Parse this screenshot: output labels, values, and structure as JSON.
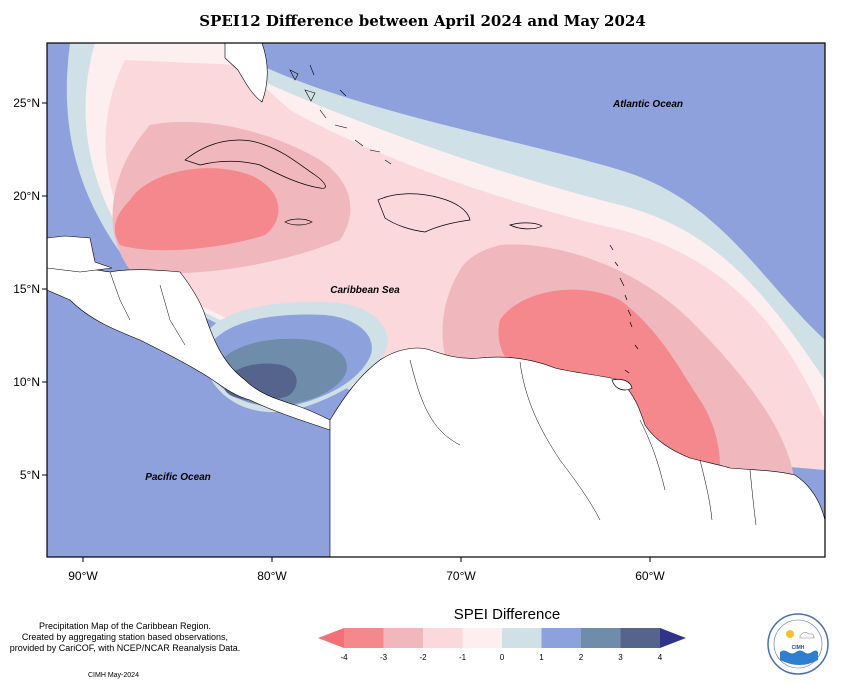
{
  "title": "SPEI12 Difference between April 2024 and May 2024",
  "axes": {
    "lon_ticks": [
      "90°W",
      "80°W",
      "70°W",
      "60°W"
    ],
    "lat_ticks": [
      "25°N",
      "20°N",
      "15°N",
      "10°N",
      "5°N"
    ]
  },
  "labels": {
    "atlantic": "Atlantic Ocean",
    "caribbean": "Caribbean Sea",
    "pacific": "Pacific Ocean"
  },
  "note": {
    "line1": "Precipitation Map of the Caribbean Region.",
    "line2": "Created by aggregating station based observations,",
    "line3": "provided by CariCOF, with NCEP/NCAR Reanalysis Data."
  },
  "credit": "CIMH May-2024",
  "legend": {
    "title": "SPEI Difference",
    "ticks": [
      "-4",
      "-3",
      "-2",
      "-1",
      "0",
      "1",
      "2",
      "3",
      "4"
    ],
    "colors": [
      "#f4888c",
      "#f0b8bc",
      "#fad8dc",
      "#fdeef0",
      "#cfe0e6",
      "#8da2dc",
      "#6f8cab",
      "#55648c"
    ],
    "arrow_low": "#f47078",
    "arrow_high": "#303488"
  },
  "logo": {
    "name": "CIMH"
  }
}
